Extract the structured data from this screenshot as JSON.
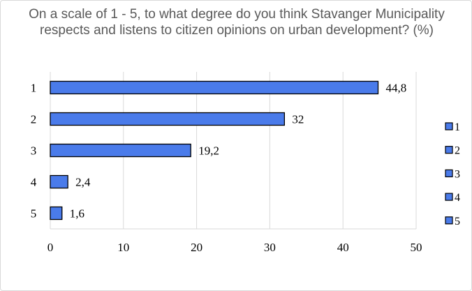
{
  "chart_data": {
    "type": "bar",
    "orientation": "horizontal",
    "title": "On a scale of 1 - 5, to what degree do you think Stavanger Municipality respects and listens to citizen opinions on urban development? (%)",
    "categories": [
      "1",
      "2",
      "3",
      "4",
      "5"
    ],
    "values": [
      44.8,
      32,
      19.2,
      2.4,
      1.6
    ],
    "value_labels": [
      "44,8",
      "32",
      "19,2",
      "2,4",
      "1,6"
    ],
    "xlim": [
      0,
      50
    ],
    "x_ticks": [
      0,
      10,
      20,
      30,
      40,
      50
    ],
    "grid": true,
    "legend": {
      "placement": "right",
      "entries": [
        "1",
        "2",
        "3",
        "4",
        "5"
      ]
    },
    "bar_color": "#4a7bea",
    "bar_edge_color": "#000000"
  }
}
